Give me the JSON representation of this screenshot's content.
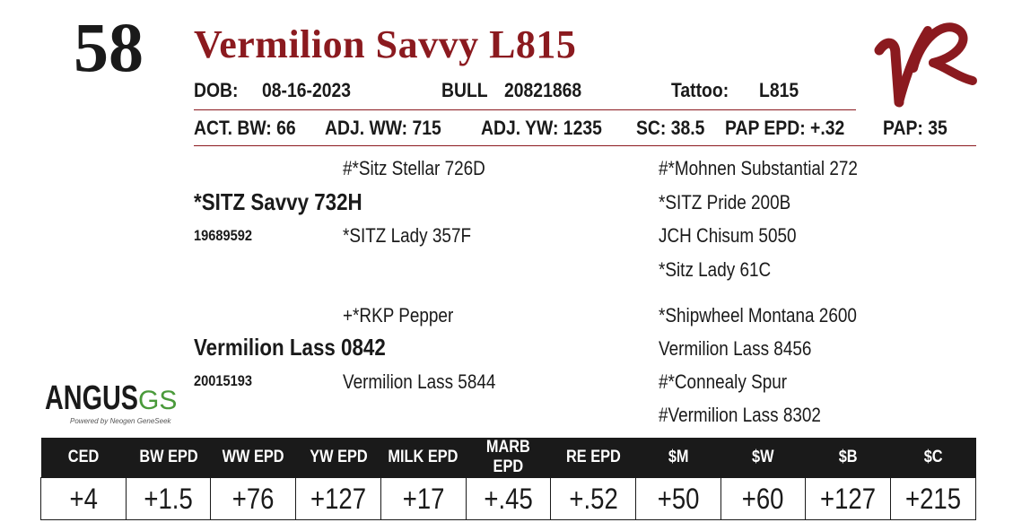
{
  "lot_number": "58",
  "animal_name": "Vermilion Savvy L815",
  "header": {
    "dob_label": "DOB:",
    "dob": "08-16-2023",
    "sex": "BULL",
    "registration": "20821868",
    "tattoo_label": "Tattoo:",
    "tattoo": "L815"
  },
  "performance": {
    "act_bw": "ACT. BW: 66",
    "adj_ww": "ADJ. WW: 715",
    "adj_yw": "ADJ. YW: 1235",
    "sc": "SC: 38.5",
    "pap_epd": "PAP EPD: +.32",
    "pap": "PAP: 35"
  },
  "pedigree": {
    "sire": {
      "name": "*SITZ Savvy 732H",
      "reg": "19689592"
    },
    "sire_sire": "#*Sitz Stellar 726D",
    "sire_dam": "*SITZ Lady 357F",
    "sire_sire_sire": "#*Mohnen Substantial 272",
    "sire_sire_dam": "*SITZ Pride 200B",
    "sire_dam_sire": "JCH Chisum 5050",
    "sire_dam_dam": "*Sitz Lady 61C",
    "dam": {
      "name": "Vermilion Lass 0842",
      "reg": "20015193"
    },
    "dam_sire": "+*RKP Pepper",
    "dam_dam": "Vermilion Lass 5844",
    "dam_sire_sire": "*Shipwheel Montana 2600",
    "dam_sire_dam": "Vermilion Lass 8456",
    "dam_dam_sire": "#*Connealy Spur",
    "dam_dam_dam": "#Vermilion Lass 8302"
  },
  "logos": {
    "ranch_logo_text": "VR",
    "angus_logo_text": "ANGUS",
    "angus_logo_suffix": "GS",
    "angus_logo_tagline": "Powered by Neogen GeneSeek"
  },
  "epd": {
    "headers": [
      "CED",
      "BW EPD",
      "WW EPD",
      "YW EPD",
      "MILK EPD",
      "MARB EPD",
      "RE EPD",
      "$M",
      "$W",
      "$B",
      "$C"
    ],
    "values": [
      "+4",
      "+1.5",
      "+76",
      "+127",
      "+17",
      "+.45",
      "+.52",
      "+50",
      "+60",
      "+127",
      "+215"
    ]
  },
  "colors": {
    "accent": "#8b1a1f",
    "text": "#1a1a1a",
    "table_header_bg": "#1a1a1a"
  }
}
